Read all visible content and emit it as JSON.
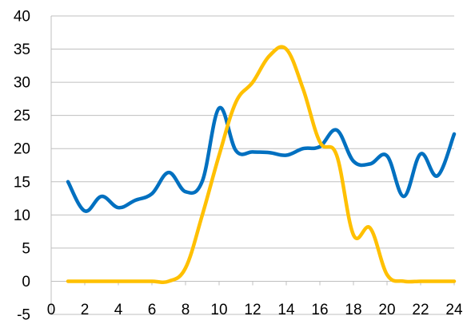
{
  "chart_data": {
    "type": "line",
    "title": "",
    "xlabel": "",
    "ylabel": "",
    "xlim": [
      0,
      24
    ],
    "ylim": [
      -5,
      40
    ],
    "x_ticks": [
      "0",
      "2",
      "4",
      "6",
      "8",
      "10",
      "12",
      "14",
      "16",
      "18",
      "20",
      "22",
      "24"
    ],
    "y_ticks": [
      "40",
      "35",
      "30",
      "25",
      "20",
      "15",
      "10",
      "5",
      "0",
      "-5"
    ],
    "grid": true,
    "legend": "none",
    "x": [
      1,
      2,
      3,
      4,
      5,
      6,
      7,
      8,
      9,
      10,
      11,
      12,
      13,
      14,
      15,
      16,
      17,
      18,
      19,
      20,
      21,
      22,
      23,
      24
    ],
    "series": [
      {
        "color": "#0070c0",
        "values": [
          15,
          10.6,
          12.8,
          11.1,
          12.2,
          13.2,
          16.4,
          13.5,
          15.1,
          26.1,
          19.7,
          19.5,
          19.4,
          19.0,
          20.0,
          20.3,
          22.8,
          18.1,
          17.7,
          18.9,
          12.8,
          19.2,
          15.9,
          22.2
        ]
      },
      {
        "color": "#ffc000",
        "values": [
          0,
          0,
          0,
          0,
          0,
          0,
          0,
          2,
          10,
          19,
          27,
          30,
          34,
          35,
          29,
          21,
          19,
          7,
          8,
          1,
          0,
          0,
          0,
          0
        ]
      }
    ]
  }
}
